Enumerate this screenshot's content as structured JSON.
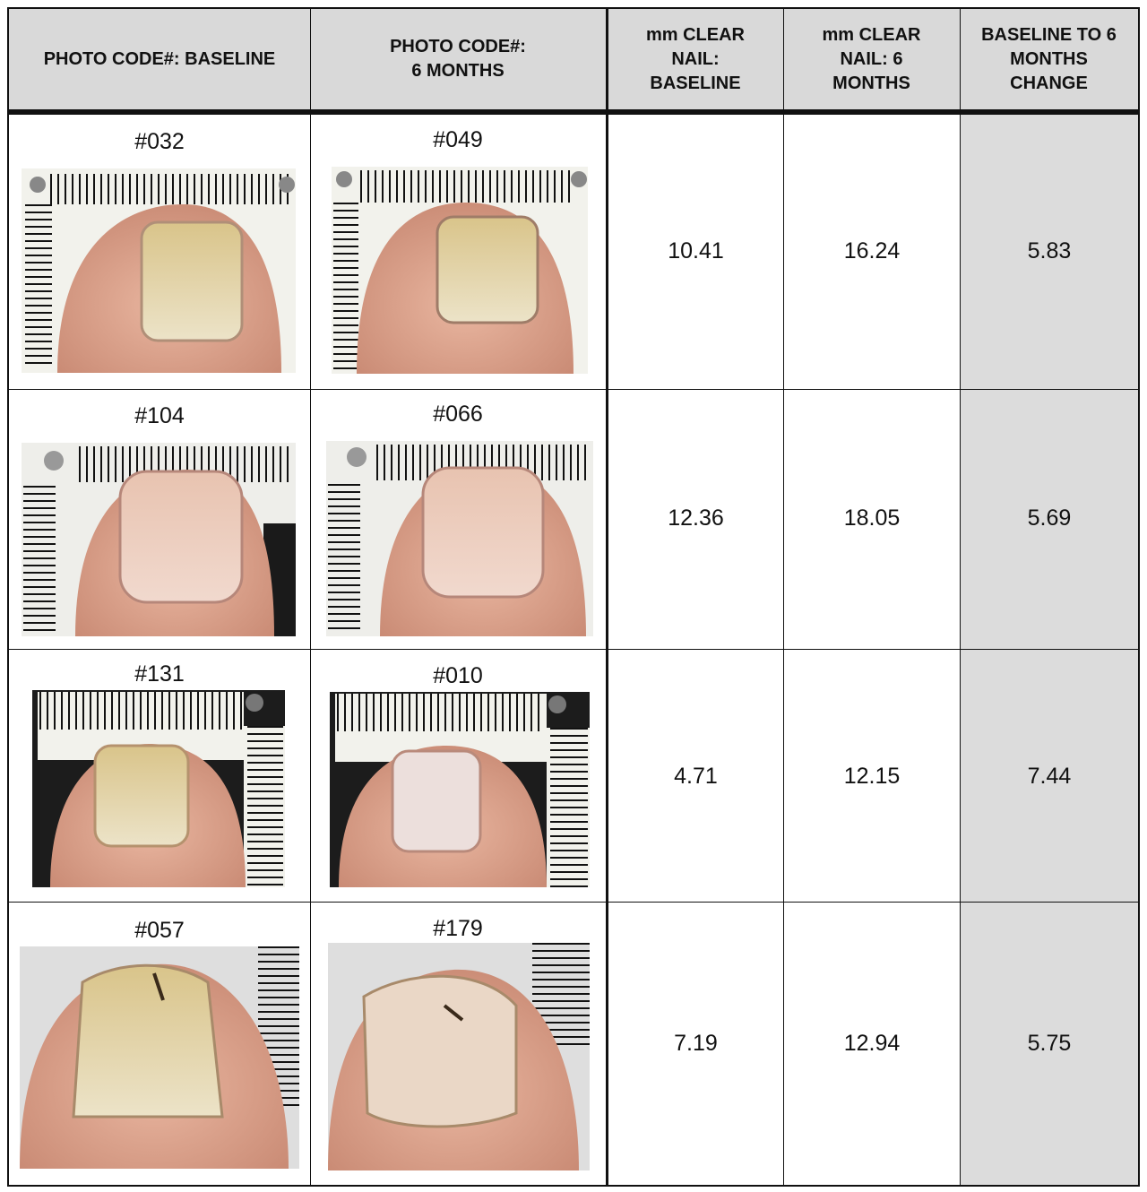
{
  "headers": [
    "PHOTO CODE#: BASELINE",
    "PHOTO CODE#:\n6 MONTHS",
    "mm CLEAR\nNAIL:\nBASELINE",
    "mm CLEAR\nNAIL: 6\nMONTHS",
    "BASELINE TO 6\nMONTHS\nCHANGE"
  ],
  "rows": [
    {
      "baseline_code": "#032",
      "six_month_code": "#049",
      "mm_baseline": "10.41",
      "mm_six_months": "16.24",
      "change": "5.83"
    },
    {
      "baseline_code": "#104",
      "six_month_code": "#066",
      "mm_baseline": "12.36",
      "mm_six_months": "18.05",
      "change": "5.69"
    },
    {
      "baseline_code": "#131",
      "six_month_code": "#010",
      "mm_baseline": "4.71",
      "mm_six_months": "12.15",
      "change": "7.44"
    },
    {
      "baseline_code": "#057",
      "six_month_code": "#179",
      "mm_baseline": "7.19",
      "mm_six_months": "12.94",
      "change": "5.75"
    }
  ],
  "colors": {
    "header_bg": "#d9d9d9",
    "change_col_bg": "#dcdcdc",
    "border": "#111111"
  }
}
